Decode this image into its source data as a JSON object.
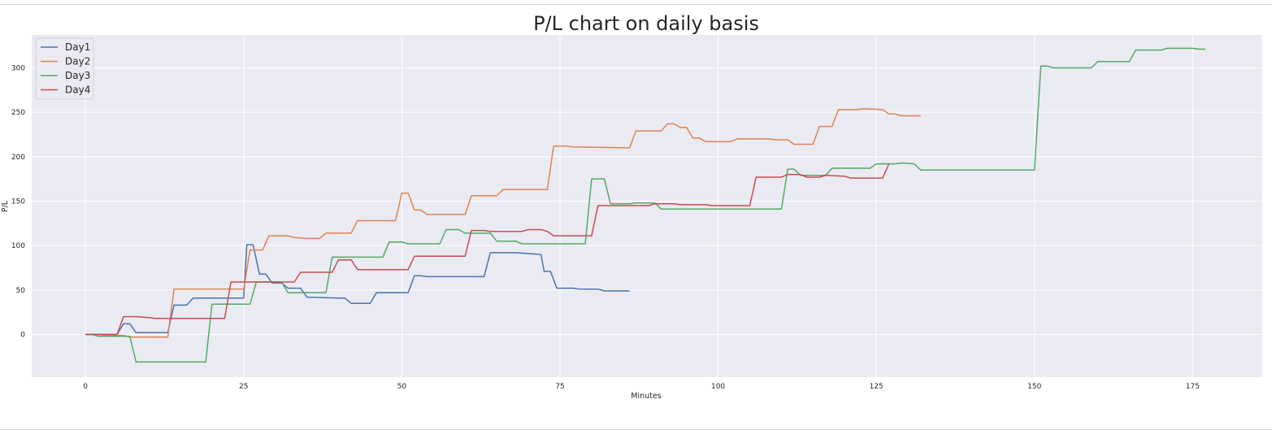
{
  "chart_data": {
    "type": "line",
    "title": "P/L chart on daily basis",
    "xlabel": "Minutes",
    "ylabel": "P/L",
    "xlim": [
      -8.5,
      186
    ],
    "ylim": [
      -48,
      337
    ],
    "xticks": [
      0,
      25,
      50,
      75,
      100,
      125,
      150,
      175
    ],
    "yticks": [
      0,
      50,
      100,
      150,
      200,
      250,
      300
    ],
    "grid": true,
    "legend_position": "top-left",
    "series": [
      {
        "name": "Day1",
        "color": "#4c72b0",
        "points": [
          [
            0,
            0
          ],
          [
            5,
            0
          ],
          [
            6,
            12
          ],
          [
            7,
            12
          ],
          [
            8,
            2
          ],
          [
            13,
            2
          ],
          [
            14,
            33
          ],
          [
            16,
            33
          ],
          [
            17,
            41
          ],
          [
            25,
            41
          ],
          [
            25.5,
            101
          ],
          [
            26.5,
            101
          ],
          [
            27.5,
            68
          ],
          [
            28.5,
            68
          ],
          [
            29.5,
            58
          ],
          [
            31,
            58
          ],
          [
            32,
            52
          ],
          [
            34,
            52
          ],
          [
            35,
            42
          ],
          [
            40,
            41
          ],
          [
            41,
            41
          ],
          [
            42,
            35
          ],
          [
            45,
            35
          ],
          [
            46,
            47
          ],
          [
            51,
            47
          ],
          [
            52,
            66
          ],
          [
            53,
            66
          ],
          [
            54,
            65
          ],
          [
            63,
            65
          ],
          [
            64,
            92
          ],
          [
            68,
            92
          ],
          [
            70,
            91
          ],
          [
            72,
            90
          ],
          [
            72.5,
            71
          ],
          [
            73.5,
            71
          ],
          [
            74.5,
            52
          ],
          [
            77,
            52
          ],
          [
            78,
            51
          ],
          [
            81,
            51
          ],
          [
            82,
            49
          ],
          [
            86,
            49
          ]
        ]
      },
      {
        "name": "Day2",
        "color": "#dd8452",
        "points": [
          [
            0,
            0
          ],
          [
            2,
            0
          ],
          [
            3,
            -1
          ],
          [
            6,
            -1
          ],
          [
            7,
            -3
          ],
          [
            13,
            -3
          ],
          [
            14,
            51
          ],
          [
            25,
            51
          ],
          [
            26,
            95
          ],
          [
            28,
            95
          ],
          [
            29,
            111
          ],
          [
            32,
            111
          ],
          [
            33,
            109
          ],
          [
            35,
            108
          ],
          [
            37,
            108
          ],
          [
            38,
            114
          ],
          [
            42,
            114
          ],
          [
            43,
            128
          ],
          [
            49,
            128
          ],
          [
            50,
            159
          ],
          [
            51,
            159
          ],
          [
            52,
            140
          ],
          [
            53,
            140
          ],
          [
            54,
            135
          ],
          [
            60,
            135
          ],
          [
            61,
            156
          ],
          [
            65,
            156
          ],
          [
            66,
            163
          ],
          [
            73,
            163
          ],
          [
            74,
            212
          ],
          [
            76,
            212
          ],
          [
            77,
            211
          ],
          [
            86,
            210
          ],
          [
            87,
            229
          ],
          [
            91,
            229
          ],
          [
            92,
            237
          ],
          [
            93,
            237
          ],
          [
            94,
            233
          ],
          [
            95,
            233
          ],
          [
            96,
            221
          ],
          [
            97,
            221
          ],
          [
            98,
            217
          ],
          [
            102,
            217
          ],
          [
            103,
            220
          ],
          [
            108,
            220
          ],
          [
            109,
            219
          ],
          [
            111,
            219
          ],
          [
            112,
            214
          ],
          [
            115,
            214
          ],
          [
            116,
            234
          ],
          [
            118,
            234
          ],
          [
            119,
            253
          ],
          [
            122,
            253
          ],
          [
            123,
            254
          ],
          [
            126,
            253
          ],
          [
            127,
            248
          ],
          [
            128,
            248
          ],
          [
            129,
            246
          ],
          [
            132,
            246
          ]
        ]
      },
      {
        "name": "Day3",
        "color": "#55a868",
        "points": [
          [
            0,
            0
          ],
          [
            1,
            0
          ],
          [
            2,
            -2
          ],
          [
            3,
            -2
          ],
          [
            7,
            -2
          ],
          [
            8,
            -31
          ],
          [
            19,
            -31
          ],
          [
            20,
            34
          ],
          [
            26,
            34
          ],
          [
            27,
            59
          ],
          [
            31,
            59
          ],
          [
            32,
            47
          ],
          [
            38,
            47
          ],
          [
            39,
            87
          ],
          [
            47,
            87
          ],
          [
            48,
            104
          ],
          [
            50,
            104
          ],
          [
            51,
            102
          ],
          [
            56,
            102
          ],
          [
            57,
            118
          ],
          [
            59,
            118
          ],
          [
            60,
            114
          ],
          [
            64,
            114
          ],
          [
            65,
            105
          ],
          [
            68,
            105
          ],
          [
            69,
            102
          ],
          [
            79,
            102
          ],
          [
            80,
            175
          ],
          [
            82,
            175
          ],
          [
            83,
            147
          ],
          [
            86,
            147
          ],
          [
            87,
            148
          ],
          [
            90,
            148
          ],
          [
            91,
            141
          ],
          [
            100,
            141
          ],
          [
            110,
            141
          ],
          [
            111,
            186
          ],
          [
            112,
            186
          ],
          [
            113,
            179
          ],
          [
            117,
            179
          ],
          [
            118,
            187
          ],
          [
            124,
            187
          ],
          [
            125,
            192
          ],
          [
            128,
            192
          ],
          [
            129,
            193
          ],
          [
            131,
            192
          ],
          [
            132,
            185
          ],
          [
            140,
            185
          ],
          [
            150,
            185
          ],
          [
            151,
            302
          ],
          [
            152,
            302
          ],
          [
            153,
            300
          ],
          [
            159,
            300
          ],
          [
            160,
            307
          ],
          [
            165,
            307
          ],
          [
            166,
            320
          ],
          [
            170,
            320
          ],
          [
            171,
            322
          ],
          [
            175,
            322
          ],
          [
            176,
            321
          ],
          [
            177,
            321
          ]
        ]
      },
      {
        "name": "Day4",
        "color": "#c44e52",
        "points": [
          [
            0,
            0
          ],
          [
            5,
            0
          ],
          [
            6,
            20
          ],
          [
            8,
            20
          ],
          [
            10,
            19
          ],
          [
            11,
            18
          ],
          [
            22,
            18
          ],
          [
            23,
            59
          ],
          [
            31,
            59
          ],
          [
            32,
            59
          ],
          [
            33,
            59
          ],
          [
            34,
            70
          ],
          [
            39,
            70
          ],
          [
            40,
            84
          ],
          [
            42,
            84
          ],
          [
            43,
            73
          ],
          [
            51,
            73
          ],
          [
            52,
            88
          ],
          [
            60,
            88
          ],
          [
            61,
            117
          ],
          [
            63,
            117
          ],
          [
            64,
            116
          ],
          [
            69,
            116
          ],
          [
            70,
            118
          ],
          [
            72,
            118
          ],
          [
            73,
            116
          ],
          [
            74,
            111
          ],
          [
            80,
            111
          ],
          [
            81,
            145
          ],
          [
            89,
            145
          ],
          [
            90,
            147
          ],
          [
            93,
            147
          ],
          [
            94,
            146
          ],
          [
            98,
            146
          ],
          [
            99,
            145
          ],
          [
            105,
            145
          ],
          [
            106,
            177
          ],
          [
            110,
            177
          ],
          [
            111,
            180
          ],
          [
            113,
            180
          ],
          [
            114,
            177
          ],
          [
            116,
            177
          ],
          [
            117,
            179
          ],
          [
            120,
            178
          ],
          [
            121,
            176
          ],
          [
            126,
            176
          ],
          [
            127,
            192
          ]
        ]
      }
    ]
  }
}
